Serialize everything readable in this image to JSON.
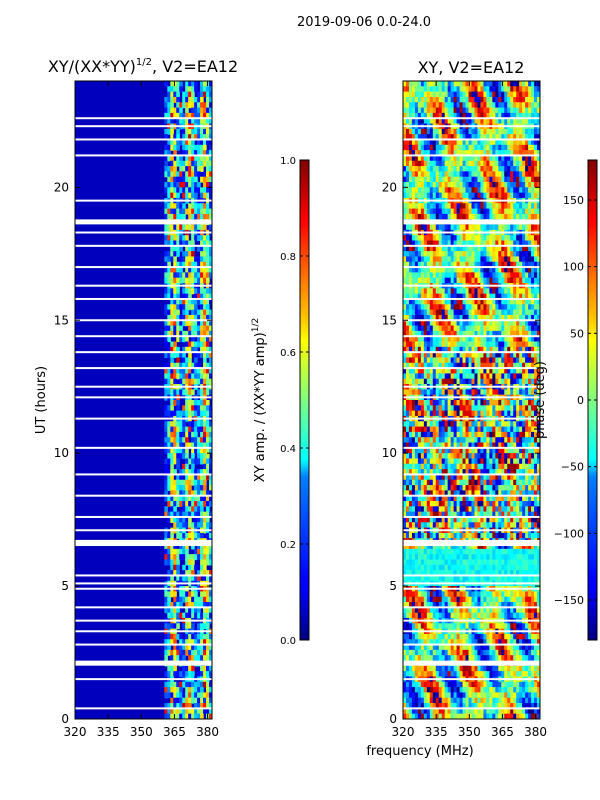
{
  "figure_title": "2019-09-06 0.0-24.0",
  "chart_data": [
    {
      "type": "heatmap",
      "panel": "left",
      "title_main": "XY/(XX*YY)",
      "title_exp": "1/2",
      "title_suffix": ", V2=EA12",
      "xlabel": "",
      "ylabel": "UT (hours)",
      "xlim": [
        320,
        382
      ],
      "ylim": [
        0,
        24
      ],
      "xticks": [
        320,
        335,
        350,
        365,
        380
      ],
      "yticks": [
        0,
        5,
        10,
        15,
        20
      ],
      "colorbar": {
        "label_main": "XY amp. / (XX*YY amp)",
        "label_exp": "1/2",
        "range": [
          0.0,
          1.0
        ],
        "ticks": [
          "0.0",
          "0.2",
          "0.4",
          "0.6",
          "0.8",
          "1.0"
        ],
        "colormap": "jet"
      },
      "data_summary": "Mostly low amplitude (~0.05) below 361 MHz; 361-382 MHz shows bands of 0.2-0.6 with peaks near 0.8-0.9"
    },
    {
      "type": "heatmap",
      "panel": "right",
      "title": "XY, V2=EA12",
      "xlabel": "frequency (MHz)",
      "ylabel": "",
      "xlim": [
        320,
        382
      ],
      "ylim": [
        0,
        24
      ],
      "xticks": [
        320,
        335,
        350,
        365,
        380
      ],
      "yticks": [
        0,
        5,
        10,
        15,
        20
      ],
      "colorbar": {
        "label": "phase (deg)",
        "range": [
          -180,
          180
        ],
        "ticks": [
          "-150",
          "-100",
          "-50",
          "0",
          "50",
          "100",
          "150"
        ],
        "colormap": "jet"
      },
      "data_summary": "Phase spans -180 to 180 deg with noisy structure; 5.0-6.5 h shows mostly ~-60 deg (cyan/green)"
    }
  ]
}
